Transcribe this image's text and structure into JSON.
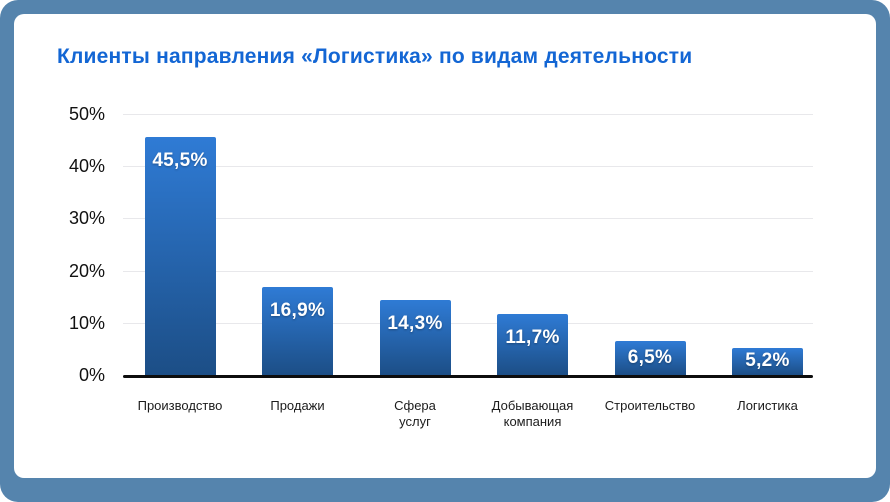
{
  "chart_data": {
    "type": "bar",
    "title": "Клиенты направления «Логистика» по видам деятельности",
    "categories": [
      "Производство",
      "Продажи",
      "Сфера\nуслуг",
      "Добывающая\nкомпания",
      "Строительство",
      "Логистика"
    ],
    "values": [
      45.5,
      16.9,
      14.3,
      11.7,
      6.5,
      5.2
    ],
    "value_labels": [
      "45,5%",
      "16,9%",
      "14,3%",
      "11,7%",
      "6,5%",
      "5,2%"
    ],
    "y_ticks": [
      0,
      10,
      20,
      30,
      40,
      50
    ],
    "y_tick_labels": [
      "0%",
      "10%",
      "20%",
      "30%",
      "40%",
      "50%"
    ],
    "ylim": [
      0,
      50
    ],
    "grid": true,
    "legend": false,
    "xlabel": "",
    "ylabel": ""
  },
  "colors": {
    "background": "#5584ad",
    "card": "#ffffff",
    "title": "#1366d4",
    "bar_gradient_top": "#2f7bd5",
    "bar_gradient_bottom": "#1c4e86",
    "gridline": "#e8e8eb",
    "axis": "#0d0d0d",
    "tick_label": "#111111",
    "category_label": "#1c1c1c",
    "bar_label": "#ffffff"
  }
}
